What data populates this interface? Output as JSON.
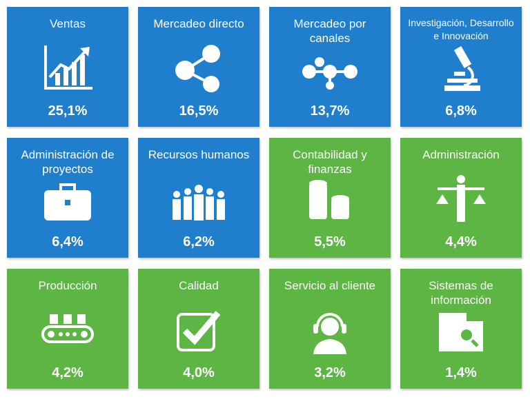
{
  "tiles": [
    {
      "label": "Ventas",
      "value": "25,1%",
      "color": "#1f7fcc"
    },
    {
      "label": "Mercadeo directo",
      "value": "16,5%",
      "color": "#1f7fcc"
    },
    {
      "label": "Mercadeo por canales",
      "value": "13,7%",
      "color": "#1f7fcc"
    },
    {
      "label": "Investigación, Desarrollo e Innovación",
      "value": "6,8%",
      "color": "#1f7fcc"
    },
    {
      "label": "Administración de proyectos",
      "value": "6,4%",
      "color": "#1f7fcc"
    },
    {
      "label": "Recursos humanos",
      "value": "6,2%",
      "color": "#1f7fcc"
    },
    {
      "label": "Contabilidad y finanzas",
      "value": "5,5%",
      "color": "#5db544"
    },
    {
      "label": "Administración",
      "value": "4,4%",
      "color": "#5db544"
    },
    {
      "label": "Producción",
      "value": "4,2%",
      "color": "#5db544"
    },
    {
      "label": "Calidad",
      "value": "4,0%",
      "color": "#5db544"
    },
    {
      "label": "Servicio al cliente",
      "value": "3,2%",
      "color": "#5db544"
    },
    {
      "label": "Sistemas de información",
      "value": "1,4%",
      "color": "#5db544"
    }
  ]
}
